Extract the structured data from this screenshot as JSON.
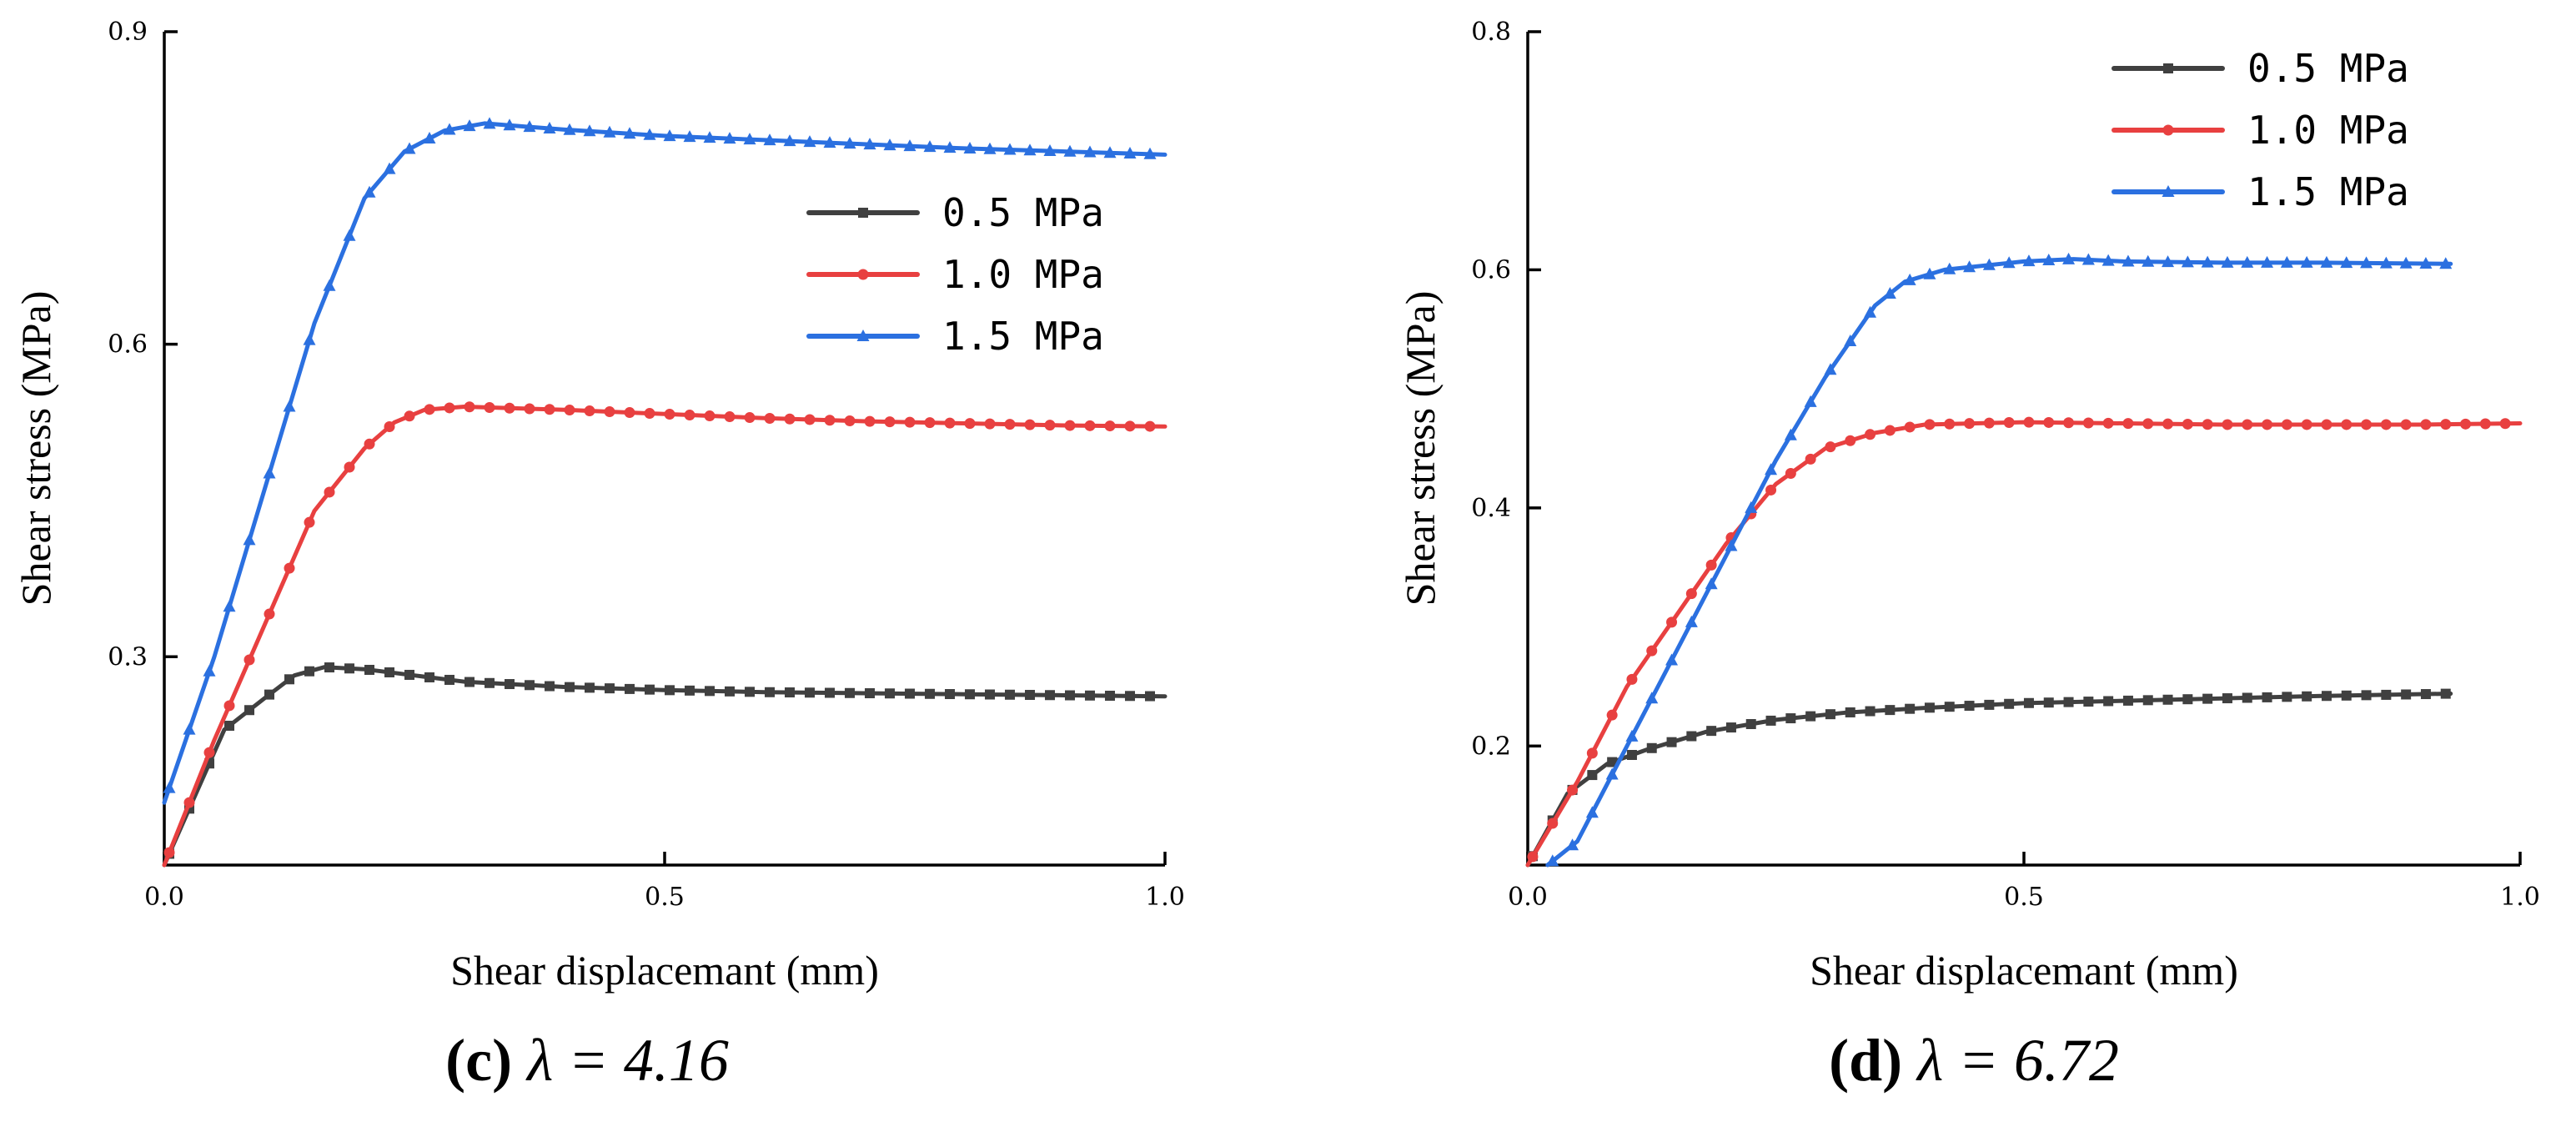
{
  "chart_data": [
    {
      "id": "c",
      "type": "line",
      "caption_letter": "(c)",
      "caption_rest": " λ = 4.16",
      "xlabel": "Shear displacemant (mm)",
      "ylabel": "Shear stress (MPa)",
      "xlim": [
        0,
        1.0
      ],
      "ylim": [
        0.1,
        0.9
      ],
      "xticks": [
        0.0,
        0.5,
        1.0
      ],
      "xtick_labels": [
        "0.0",
        "0.5",
        "1.0"
      ],
      "yticks": [
        0.3,
        0.6,
        0.9
      ],
      "ytick_labels": [
        "0.3",
        "0.6",
        "0.9"
      ],
      "legend_position": "upper-right",
      "series": [
        {
          "name": "0.5 MPa",
          "color": "#404040",
          "marker": "square",
          "x": [
            0,
            0.06,
            0.1,
            0.13,
            0.16,
            0.2,
            0.25,
            0.3,
            0.4,
            0.5,
            0.6,
            0.7,
            0.8,
            0.9,
            1.0
          ],
          "y": [
            0.1,
            0.23,
            0.26,
            0.282,
            0.29,
            0.288,
            0.282,
            0.276,
            0.271,
            0.268,
            0.266,
            0.265,
            0.264,
            0.263,
            0.262
          ]
        },
        {
          "name": "1.0 MPa",
          "color": "#e84040",
          "marker": "circle",
          "x": [
            0,
            0.05,
            0.1,
            0.15,
            0.2,
            0.23,
            0.26,
            0.3,
            0.4,
            0.5,
            0.6,
            0.7,
            0.8,
            0.9,
            1.0
          ],
          "y": [
            0.1,
            0.22,
            0.33,
            0.44,
            0.5,
            0.525,
            0.537,
            0.54,
            0.537,
            0.533,
            0.529,
            0.526,
            0.524,
            0.522,
            0.521
          ]
        },
        {
          "name": "1.5 MPa",
          "color": "#2b70e0",
          "marker": "triangle",
          "x": [
            0,
            0.05,
            0.1,
            0.15,
            0.2,
            0.24,
            0.28,
            0.32,
            0.4,
            0.5,
            0.6,
            0.7,
            0.8,
            0.9,
            1.0
          ],
          "y": [
            0.16,
            0.3,
            0.46,
            0.62,
            0.74,
            0.785,
            0.805,
            0.812,
            0.806,
            0.8,
            0.796,
            0.792,
            0.788,
            0.785,
            0.782
          ]
        }
      ]
    },
    {
      "id": "d",
      "type": "line",
      "caption_letter": "(d)",
      "caption_rest": " λ = 6.72",
      "xlabel": "Shear displacemant (mm)",
      "ylabel": "Shear stress (MPa)",
      "xlim": [
        0,
        1.0
      ],
      "ylim": [
        0.1,
        0.8
      ],
      "xticks": [
        0.0,
        0.5,
        1.0
      ],
      "xtick_labels": [
        "0.0",
        "0.5",
        "1.0"
      ],
      "yticks": [
        0.2,
        0.4,
        0.6,
        0.8
      ],
      "ytick_labels": [
        "0.2",
        "0.4",
        "0.6",
        "0.8"
      ],
      "legend_position": "top-right",
      "series": [
        {
          "name": "0.5 MPa",
          "color": "#404040",
          "marker": "square",
          "x": [
            0,
            0.04,
            0.08,
            0.12,
            0.18,
            0.25,
            0.32,
            0.4,
            0.5,
            0.6,
            0.7,
            0.8,
            0.93
          ],
          "y": [
            0.1,
            0.16,
            0.185,
            0.197,
            0.212,
            0.222,
            0.228,
            0.232,
            0.236,
            0.238,
            0.24,
            0.242,
            0.244
          ]
        },
        {
          "name": "1.0 MPa",
          "color": "#e84040",
          "marker": "circle",
          "x": [
            0,
            0.05,
            0.1,
            0.15,
            0.2,
            0.25,
            0.3,
            0.35,
            0.4,
            0.5,
            0.6,
            0.7,
            0.8,
            0.9,
            1.0
          ],
          "y": [
            0.1,
            0.17,
            0.25,
            0.31,
            0.37,
            0.42,
            0.45,
            0.463,
            0.47,
            0.472,
            0.471,
            0.47,
            0.47,
            0.47,
            0.471
          ]
        },
        {
          "name": "1.5 MPa",
          "color": "#2b70e0",
          "marker": "triangle",
          "x": [
            0.02,
            0.05,
            0.1,
            0.15,
            0.2,
            0.25,
            0.3,
            0.35,
            0.38,
            0.42,
            0.5,
            0.55,
            0.6,
            0.7,
            0.8,
            0.93
          ],
          "y": [
            0.1,
            0.12,
            0.2,
            0.28,
            0.36,
            0.44,
            0.51,
            0.57,
            0.59,
            0.6,
            0.607,
            0.609,
            0.607,
            0.606,
            0.606,
            0.605
          ]
        }
      ]
    }
  ]
}
